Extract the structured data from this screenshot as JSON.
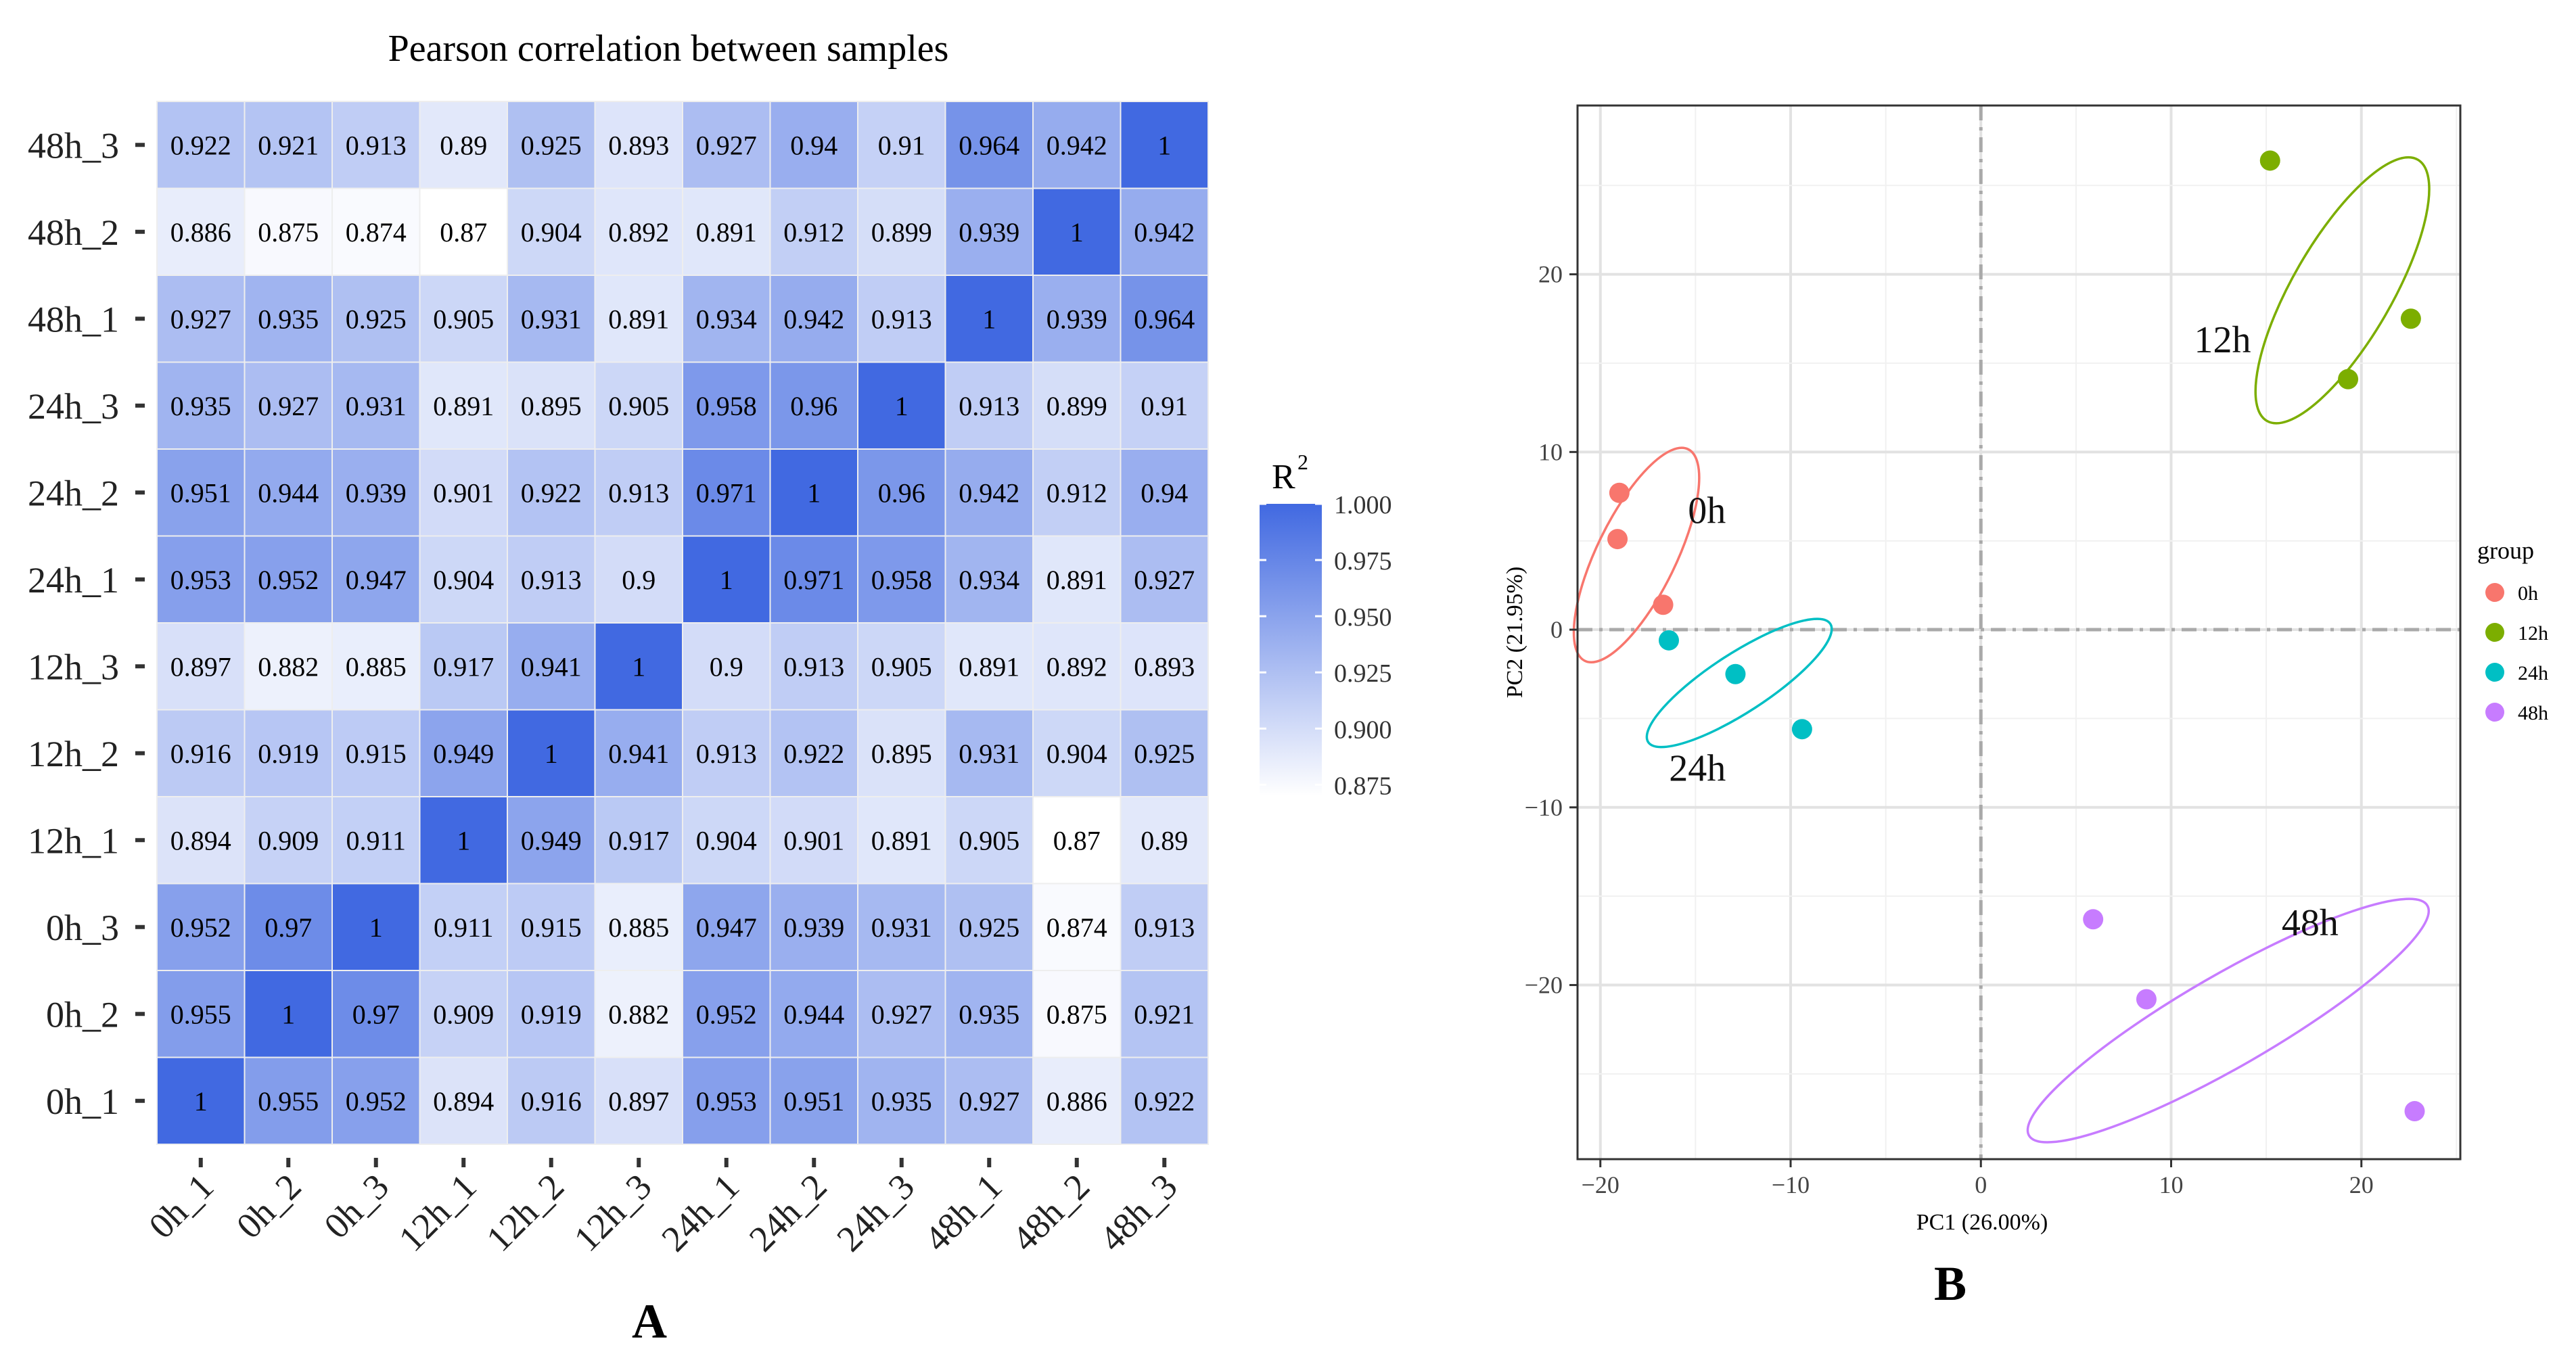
{
  "panel_labels": {
    "a": "A",
    "b": "B"
  },
  "colors": {
    "low": "#ffffff",
    "high": "#4169e1",
    "grid": "#dcdcdc",
    "frame": "#333333"
  },
  "chart_data": [
    {
      "type": "heatmap",
      "title": "Pearson correlation between samples",
      "legend_title": "R",
      "legend_superscript": "2",
      "legend_ticks": [
        "1.000",
        "0.975",
        "0.950",
        "0.925",
        "0.900",
        "0.875"
      ],
      "legend_range": [
        0.87,
        1.0
      ],
      "x_labels": [
        "0h_1",
        "0h_2",
        "0h_3",
        "12h_1",
        "12h_2",
        "12h_3",
        "24h_1",
        "24h_2",
        "24h_3",
        "48h_1",
        "48h_2",
        "48h_3"
      ],
      "y_labels": [
        "48h_3",
        "48h_2",
        "48h_1",
        "24h_3",
        "24h_2",
        "24h_1",
        "12h_3",
        "12h_2",
        "12h_1",
        "0h_3",
        "0h_2",
        "0h_1"
      ],
      "values": [
        [
          "0.922",
          "0.921",
          "0.913",
          "0.89",
          "0.925",
          "0.893",
          "0.927",
          "0.94",
          "0.91",
          "0.964",
          "0.942",
          "1"
        ],
        [
          "0.886",
          "0.875",
          "0.874",
          "0.87",
          "0.904",
          "0.892",
          "0.891",
          "0.912",
          "0.899",
          "0.939",
          "1",
          "0.942"
        ],
        [
          "0.927",
          "0.935",
          "0.925",
          "0.905",
          "0.931",
          "0.891",
          "0.934",
          "0.942",
          "0.913",
          "1",
          "0.939",
          "0.964"
        ],
        [
          "0.935",
          "0.927",
          "0.931",
          "0.891",
          "0.895",
          "0.905",
          "0.958",
          "0.96",
          "1",
          "0.913",
          "0.899",
          "0.91"
        ],
        [
          "0.951",
          "0.944",
          "0.939",
          "0.901",
          "0.922",
          "0.913",
          "0.971",
          "1",
          "0.96",
          "0.942",
          "0.912",
          "0.94"
        ],
        [
          "0.953",
          "0.952",
          "0.947",
          "0.904",
          "0.913",
          "0.9",
          "1",
          "0.971",
          "0.958",
          "0.934",
          "0.891",
          "0.927"
        ],
        [
          "0.897",
          "0.882",
          "0.885",
          "0.917",
          "0.941",
          "1",
          "0.9",
          "0.913",
          "0.905",
          "0.891",
          "0.892",
          "0.893"
        ],
        [
          "0.916",
          "0.919",
          "0.915",
          "0.949",
          "1",
          "0.941",
          "0.913",
          "0.922",
          "0.895",
          "0.931",
          "0.904",
          "0.925"
        ],
        [
          "0.894",
          "0.909",
          "0.911",
          "1",
          "0.949",
          "0.917",
          "0.904",
          "0.901",
          "0.891",
          "0.905",
          "0.87",
          "0.89"
        ],
        [
          "0.952",
          "0.97",
          "1",
          "0.911",
          "0.915",
          "0.885",
          "0.947",
          "0.939",
          "0.931",
          "0.925",
          "0.874",
          "0.913"
        ],
        [
          "0.955",
          "1",
          "0.97",
          "0.909",
          "0.919",
          "0.882",
          "0.952",
          "0.944",
          "0.927",
          "0.935",
          "0.875",
          "0.921"
        ],
        [
          "1",
          "0.955",
          "0.952",
          "0.894",
          "0.916",
          "0.897",
          "0.953",
          "0.951",
          "0.935",
          "0.927",
          "0.886",
          "0.922"
        ]
      ]
    },
    {
      "type": "scatter",
      "xlabel": "PC1 (26.00%)",
      "ylabel": "PC2 (21.95%)",
      "xlim": [
        -21.2,
        25.2
      ],
      "ylim": [
        -29.8,
        29.5
      ],
      "xticks": [
        -20,
        -10,
        0,
        10,
        20
      ],
      "yticks": [
        -20,
        -10,
        0,
        10,
        20
      ],
      "xtick_labels": [
        "−20",
        "−10",
        "0",
        "10",
        "20"
      ],
      "ytick_labels": [
        "−20",
        "−10",
        "0",
        "10",
        "20"
      ],
      "legend_title": "group",
      "series": [
        {
          "name": "0h",
          "label": "0h",
          "color": "#f8766d",
          "points": [
            [
              -19.0,
              7.7
            ],
            [
              -19.1,
              5.1
            ],
            [
              -16.7,
              1.4
            ]
          ],
          "label_at": [
            -14.4,
            6.0
          ],
          "ellipse": {
            "cx": -18.1,
            "cy": 4.2,
            "rx": 6.4,
            "ry": 2.15,
            "angle_deg": -64
          }
        },
        {
          "name": "12h",
          "label": "12h",
          "color": "#7cae00",
          "points": [
            [
              15.2,
              26.4
            ],
            [
              22.6,
              17.5
            ],
            [
              19.3,
              14.1
            ]
          ],
          "label_at": [
            12.7,
            15.6
          ],
          "ellipse": {
            "cx": 19.0,
            "cy": 19.1,
            "rx": 8.2,
            "ry": 2.7,
            "angle_deg": -60
          }
        },
        {
          "name": "24h",
          "label": "24h",
          "color": "#00bfc4",
          "points": [
            [
              -16.4,
              -0.6
            ],
            [
              -12.9,
              -2.5
            ],
            [
              -9.4,
              -5.6
            ]
          ],
          "label_at": [
            -14.9,
            -8.5
          ],
          "ellipse": {
            "cx": -12.7,
            "cy": -3.0,
            "rx": 5.9,
            "ry": 1.6,
            "angle_deg": -33
          }
        },
        {
          "name": "48h",
          "label": "48h",
          "color": "#c77cff",
          "points": [
            [
              5.9,
              -16.3
            ],
            [
              8.7,
              -20.8
            ],
            [
              22.8,
              -27.1
            ]
          ],
          "label_at": [
            17.3,
            -17.2
          ],
          "ellipse": {
            "cx": 13.0,
            "cy": -22.0,
            "rx": 12.5,
            "ry": 2.5,
            "angle_deg": -30
          }
        }
      ]
    }
  ]
}
